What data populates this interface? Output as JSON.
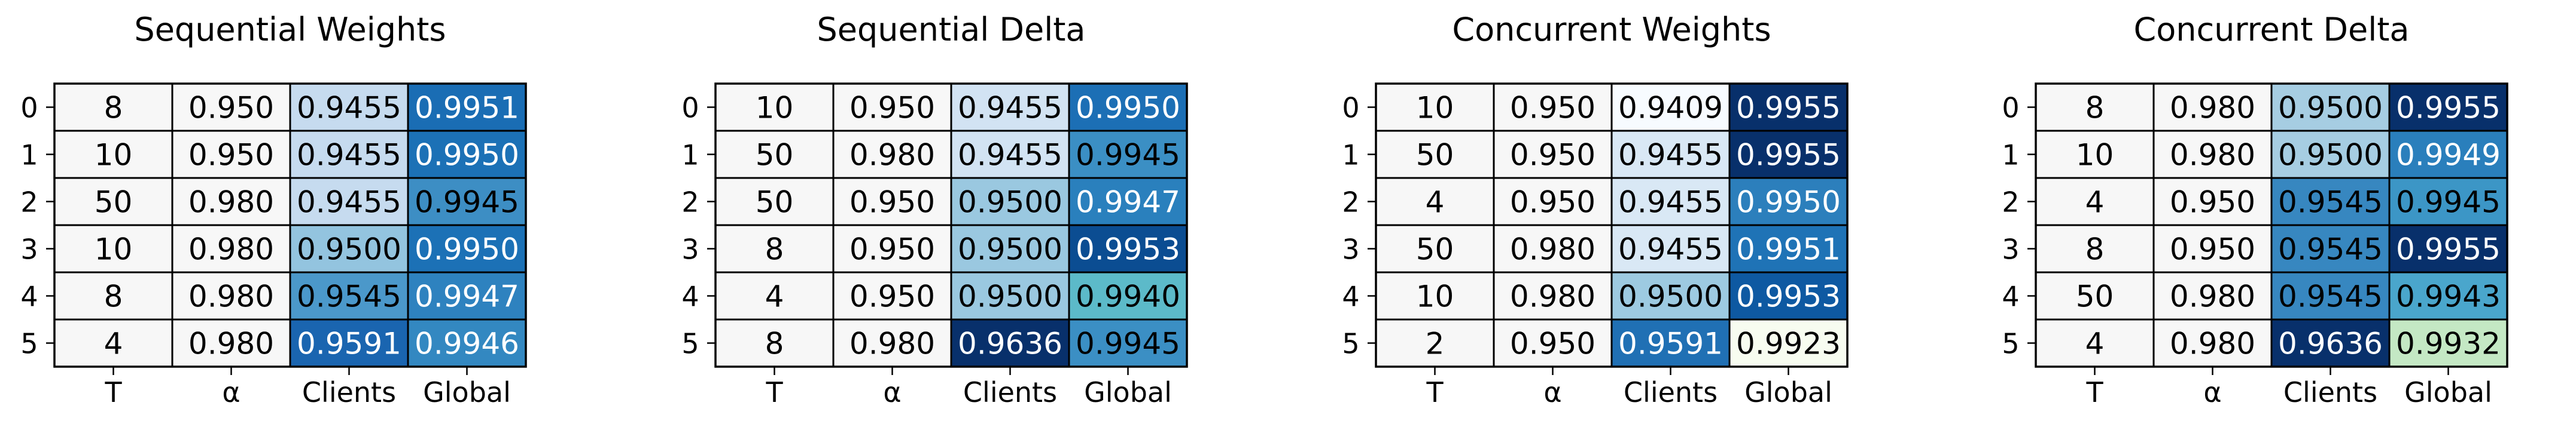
{
  "chart_data": [
    {
      "type": "table",
      "title": "Sequential Weights",
      "columns": [
        "T",
        "α",
        "Clients",
        "Global"
      ],
      "rows": [
        "0",
        "1",
        "2",
        "3",
        "4",
        "5"
      ],
      "cells": [
        [
          "8",
          "0.950",
          "0.9455",
          "0.9951"
        ],
        [
          "10",
          "0.950",
          "0.9455",
          "0.9950"
        ],
        [
          "50",
          "0.980",
          "0.9455",
          "0.9945"
        ],
        [
          "10",
          "0.980",
          "0.9500",
          "0.9950"
        ],
        [
          "8",
          "0.980",
          "0.9545",
          "0.9947"
        ],
        [
          "4",
          "0.980",
          "0.9591",
          "0.9946"
        ]
      ],
      "cell_colors": [
        [
          "#f7f7f7",
          "#f7f7f7",
          "#c6dbef",
          "#1a6db4"
        ],
        [
          "#f7f7f7",
          "#f7f7f7",
          "#c6dbef",
          "#1c71b6"
        ],
        [
          "#f7f7f7",
          "#f7f7f7",
          "#c6dbef",
          "#3d8ec4"
        ],
        [
          "#f7f7f7",
          "#f7f7f7",
          "#93c4df",
          "#1c71b6"
        ],
        [
          "#f7f7f7",
          "#f7f7f7",
          "#4b98ca",
          "#2e82bf"
        ],
        [
          "#f7f7f7",
          "#f7f7f7",
          "#1a65b0",
          "#3388c1"
        ]
      ],
      "text_colors": [
        [
          "#000000",
          "#000000",
          "#000000",
          "#ffffff"
        ],
        [
          "#000000",
          "#000000",
          "#000000",
          "#ffffff"
        ],
        [
          "#000000",
          "#000000",
          "#000000",
          "#000000"
        ],
        [
          "#000000",
          "#000000",
          "#000000",
          "#ffffff"
        ],
        [
          "#000000",
          "#000000",
          "#000000",
          "#ffffff"
        ],
        [
          "#000000",
          "#000000",
          "#ffffff",
          "#ffffff"
        ]
      ]
    },
    {
      "type": "table",
      "title": "Sequential Delta",
      "columns": [
        "T",
        "α",
        "Clients",
        "Global"
      ],
      "rows": [
        "0",
        "1",
        "2",
        "3",
        "4",
        "5"
      ],
      "cells": [
        [
          "10",
          "0.950",
          "0.9455",
          "0.9950"
        ],
        [
          "50",
          "0.980",
          "0.9455",
          "0.9945"
        ],
        [
          "50",
          "0.950",
          "0.9500",
          "0.9947"
        ],
        [
          "8",
          "0.950",
          "0.9500",
          "0.9953"
        ],
        [
          "4",
          "0.950",
          "0.9500",
          "0.9940"
        ],
        [
          "8",
          "0.980",
          "0.9636",
          "0.9945"
        ]
      ],
      "cell_colors": [
        [
          "#f7f7f7",
          "#f7f7f7",
          "#d2e3f3",
          "#1c6fb5"
        ],
        [
          "#f7f7f7",
          "#f7f7f7",
          "#d2e3f3",
          "#3b8fc4"
        ],
        [
          "#f7f7f7",
          "#f7f7f7",
          "#9ac8e0",
          "#2a80bd"
        ],
        [
          "#f7f7f7",
          "#f7f7f7",
          "#9ac8e0",
          "#0b4d92"
        ],
        [
          "#f7f7f7",
          "#f7f7f7",
          "#9ac8e0",
          "#5cbac9"
        ],
        [
          "#f7f7f7",
          "#f7f7f7",
          "#08306b",
          "#3b8fc4"
        ]
      ],
      "text_colors": [
        [
          "#000000",
          "#000000",
          "#000000",
          "#ffffff"
        ],
        [
          "#000000",
          "#000000",
          "#000000",
          "#000000"
        ],
        [
          "#000000",
          "#000000",
          "#000000",
          "#ffffff"
        ],
        [
          "#000000",
          "#000000",
          "#000000",
          "#ffffff"
        ],
        [
          "#000000",
          "#000000",
          "#000000",
          "#000000"
        ],
        [
          "#000000",
          "#000000",
          "#ffffff",
          "#000000"
        ]
      ]
    },
    {
      "type": "table",
      "title": "Concurrent Weights",
      "columns": [
        "T",
        "α",
        "Clients",
        "Global"
      ],
      "rows": [
        "0",
        "1",
        "2",
        "3",
        "4",
        "5"
      ],
      "cells": [
        [
          "10",
          "0.950",
          "0.9409",
          "0.9955"
        ],
        [
          "50",
          "0.950",
          "0.9455",
          "0.9955"
        ],
        [
          "4",
          "0.950",
          "0.9455",
          "0.9950"
        ],
        [
          "50",
          "0.980",
          "0.9455",
          "0.9951"
        ],
        [
          "10",
          "0.980",
          "0.9500",
          "0.9953"
        ],
        [
          "2",
          "0.950",
          "0.9591",
          "0.9923"
        ]
      ],
      "cell_colors": [
        [
          "#f7f7f7",
          "#f7f7f7",
          "#f7fbff",
          "#08306b"
        ],
        [
          "#f7f7f7",
          "#f7f7f7",
          "#d9e8f5",
          "#08306b"
        ],
        [
          "#f7f7f7",
          "#f7f7f7",
          "#d9e8f5",
          "#2c7fbc"
        ],
        [
          "#f7f7f7",
          "#f7f7f7",
          "#d9e8f5",
          "#1f73b6"
        ],
        [
          "#f7f7f7",
          "#f7f7f7",
          "#9dcae1",
          "#0e59a2"
        ],
        [
          "#f7f7f7",
          "#f7f7f7",
          "#2070b4",
          "#f7fcf0"
        ]
      ],
      "text_colors": [
        [
          "#000000",
          "#000000",
          "#000000",
          "#ffffff"
        ],
        [
          "#000000",
          "#000000",
          "#000000",
          "#ffffff"
        ],
        [
          "#000000",
          "#000000",
          "#000000",
          "#ffffff"
        ],
        [
          "#000000",
          "#000000",
          "#000000",
          "#ffffff"
        ],
        [
          "#000000",
          "#000000",
          "#000000",
          "#ffffff"
        ],
        [
          "#000000",
          "#000000",
          "#ffffff",
          "#000000"
        ]
      ]
    },
    {
      "type": "table",
      "title": "Concurrent Delta",
      "columns": [
        "T",
        "α",
        "Clients",
        "Global"
      ],
      "rows": [
        "0",
        "1",
        "2",
        "3",
        "4",
        "5"
      ],
      "cells": [
        [
          "8",
          "0.980",
          "0.9500",
          "0.9955"
        ],
        [
          "10",
          "0.980",
          "0.9500",
          "0.9949"
        ],
        [
          "4",
          "0.950",
          "0.9545",
          "0.9945"
        ],
        [
          "8",
          "0.950",
          "0.9545",
          "0.9955"
        ],
        [
          "50",
          "0.980",
          "0.9545",
          "0.9943"
        ],
        [
          "4",
          "0.980",
          "0.9636",
          "0.9932"
        ]
      ],
      "cell_colors": [
        [
          "#f7f7f7",
          "#f7f7f7",
          "#a6cde2",
          "#08306b"
        ],
        [
          "#f7f7f7",
          "#f7f7f7",
          "#a6cde2",
          "#2a7fbc"
        ],
        [
          "#f7f7f7",
          "#f7f7f7",
          "#3787c0",
          "#3c96c6"
        ],
        [
          "#f7f7f7",
          "#f7f7f7",
          "#3787c0",
          "#08306b"
        ],
        [
          "#f7f7f7",
          "#f7f7f7",
          "#3787c0",
          "#4aa6cc"
        ],
        [
          "#f7f7f7",
          "#f7f7f7",
          "#08306b",
          "#c4e8c4"
        ]
      ],
      "text_colors": [
        [
          "#000000",
          "#000000",
          "#000000",
          "#ffffff"
        ],
        [
          "#000000",
          "#000000",
          "#000000",
          "#ffffff"
        ],
        [
          "#000000",
          "#000000",
          "#000000",
          "#000000"
        ],
        [
          "#000000",
          "#000000",
          "#000000",
          "#ffffff"
        ],
        [
          "#000000",
          "#000000",
          "#000000",
          "#000000"
        ],
        [
          "#000000",
          "#000000",
          "#ffffff",
          "#000000"
        ]
      ]
    }
  ]
}
